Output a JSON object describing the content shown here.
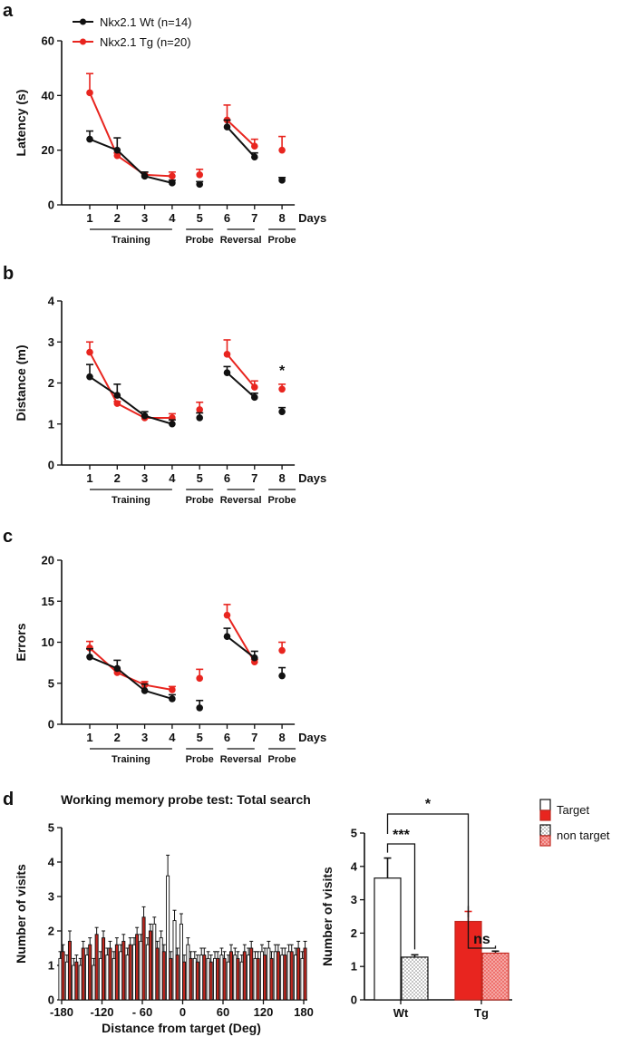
{
  "panels": {
    "a": "a",
    "b": "b",
    "c": "c",
    "d": "d"
  },
  "colors": {
    "wt": "#111111",
    "tg": "#e8251f",
    "axis": "#111111"
  },
  "legend": {
    "wt": "Nkx2.1 Wt (n=14)",
    "tg": "Nkx2.1 Tg (n=20)"
  },
  "groups": [
    "Training",
    "Probe",
    "Reversal",
    "Probe"
  ],
  "days_label": "Days",
  "chart_data": [
    {
      "type": "line",
      "id": "latency",
      "ylabel": "Latency (s)",
      "xlabel": "Days",
      "ylim": [
        0,
        60
      ],
      "yticks": [
        0,
        20,
        40,
        60
      ],
      "categories": [
        1,
        2,
        3,
        4,
        5,
        6,
        7,
        8
      ],
      "series": [
        {
          "name": "Nkx2.1 Wt (n=14)",
          "values": [
            24,
            20,
            10.5,
            8,
            7.5,
            28.5,
            17.5,
            9
          ],
          "errors": [
            3,
            4.5,
            1.5,
            1,
            1,
            2.5,
            1.5,
            1
          ]
        },
        {
          "name": "Nkx2.1 Tg (n=20)",
          "values": [
            41,
            18,
            11,
            10.5,
            11,
            31,
            21.5,
            20
          ],
          "errors": [
            7,
            1,
            1,
            1.5,
            2,
            5.5,
            2.5,
            5
          ]
        }
      ],
      "connected_segments": [
        [
          1,
          4
        ],
        [
          6,
          7
        ]
      ],
      "annotations": []
    },
    {
      "type": "line",
      "id": "distance",
      "ylabel": "Distance (m)",
      "xlabel": "Days",
      "ylim": [
        0,
        4
      ],
      "yticks": [
        0,
        1,
        2,
        3,
        4
      ],
      "categories": [
        1,
        2,
        3,
        4,
        5,
        6,
        7,
        8
      ],
      "series": [
        {
          "name": "Nkx2.1 Wt (n=14)",
          "values": [
            2.15,
            1.7,
            1.2,
            1.0,
            1.15,
            2.25,
            1.65,
            1.3
          ],
          "errors": [
            0.3,
            0.27,
            0.1,
            0.1,
            0.12,
            0.15,
            0.1,
            0.1
          ]
        },
        {
          "name": "Nkx2.1 Tg (n=20)",
          "values": [
            2.75,
            1.5,
            1.15,
            1.15,
            1.35,
            2.7,
            1.9,
            1.85
          ],
          "errors": [
            0.25,
            0.05,
            0.05,
            0.1,
            0.18,
            0.35,
            0.15,
            0.12
          ]
        }
      ],
      "connected_segments": [
        [
          1,
          4
        ],
        [
          6,
          7
        ]
      ],
      "annotations": [
        {
          "x": 8,
          "text": "*"
        }
      ]
    },
    {
      "type": "line",
      "id": "errors",
      "ylabel": "Errors",
      "xlabel": "Days",
      "ylim": [
        0,
        20
      ],
      "yticks": [
        0,
        5,
        10,
        15,
        20
      ],
      "categories": [
        1,
        2,
        3,
        4,
        5,
        6,
        7,
        8
      ],
      "series": [
        {
          "name": "Nkx2.1 Wt (n=14)",
          "values": [
            8.2,
            6.8,
            4.1,
            3.1,
            2.0,
            10.7,
            8.1,
            5.9
          ],
          "errors": [
            1.0,
            1.0,
            0.8,
            0.5,
            0.9,
            1.0,
            0.8,
            1.0
          ]
        },
        {
          "name": "Nkx2.1 Tg (n=20)",
          "values": [
            9.3,
            6.3,
            4.8,
            4.2,
            5.6,
            13.3,
            7.6,
            9.0
          ],
          "errors": [
            0.8,
            0.3,
            0.4,
            0.4,
            1.1,
            1.3,
            0.3,
            1.0
          ]
        }
      ],
      "connected_segments": [
        [
          1,
          4
        ],
        [
          6,
          7
        ]
      ],
      "annotations": []
    },
    {
      "type": "bar",
      "id": "working-memory-histogram",
      "title": "Working memory probe test: Total search",
      "xlabel": "Distance from target (Deg)",
      "ylabel": "Number of visits",
      "ylim": [
        0,
        5
      ],
      "yticks": [
        0,
        1,
        2,
        3,
        4,
        5
      ],
      "xlim": [
        -180,
        180
      ],
      "xticks": [
        -180,
        -120,
        -60,
        0,
        60,
        120,
        180
      ],
      "xtick_labels": [
        "-180",
        "-120",
        "- 60",
        "0",
        "60",
        "120",
        "180"
      ],
      "categories": [
        -180,
        -170,
        -160,
        -150,
        -140,
        -130,
        -120,
        -110,
        -100,
        -90,
        -80,
        -70,
        -60,
        -50,
        -40,
        -30,
        -20,
        -10,
        0,
        10,
        20,
        30,
        40,
        50,
        60,
        70,
        80,
        90,
        100,
        110,
        120,
        130,
        140,
        150,
        160,
        170,
        180
      ],
      "series": [
        {
          "name": "Wt",
          "values": [
            1.2,
            1.1,
            1.0,
            1.0,
            1.3,
            1.0,
            1.2,
            1.3,
            1.2,
            1.4,
            1.3,
            1.6,
            1.7,
            1.6,
            2.2,
            1.8,
            3.6,
            2.3,
            2.2,
            1.6,
            1.2,
            1.3,
            1.2,
            1.2,
            1.3,
            1.1,
            1.3,
            1.1,
            1.3,
            1.2,
            1.4,
            1.5,
            1.4,
            1.3,
            1.4,
            1.3,
            1.2
          ],
          "errors": [
            0.2,
            0.2,
            0.2,
            0.2,
            0.2,
            0.2,
            0.2,
            0.2,
            0.2,
            0.2,
            0.2,
            0.2,
            0.2,
            0.2,
            0.2,
            0.2,
            0.6,
            0.3,
            0.3,
            0.2,
            0.2,
            0.2,
            0.2,
            0.2,
            0.2,
            0.2,
            0.2,
            0.2,
            0.2,
            0.2,
            0.2,
            0.2,
            0.2,
            0.2,
            0.2,
            0.2,
            0.2
          ]
        },
        {
          "name": "Tg",
          "values": [
            1.4,
            1.7,
            1.1,
            1.5,
            1.6,
            1.9,
            1.8,
            1.5,
            1.6,
            1.7,
            1.6,
            1.9,
            2.4,
            2.0,
            1.5,
            1.4,
            1.2,
            1.3,
            1.1,
            1.2,
            1.1,
            1.3,
            1.1,
            1.2,
            1.2,
            1.4,
            1.2,
            1.4,
            1.5,
            1.2,
            1.3,
            1.2,
            1.4,
            1.3,
            1.4,
            1.5,
            1.5
          ],
          "errors": [
            0.2,
            0.3,
            0.2,
            0.2,
            0.2,
            0.2,
            0.2,
            0.2,
            0.2,
            0.2,
            0.2,
            0.2,
            0.3,
            0.2,
            0.2,
            0.2,
            0.2,
            0.2,
            0.2,
            0.2,
            0.2,
            0.2,
            0.2,
            0.2,
            0.2,
            0.2,
            0.2,
            0.2,
            0.2,
            0.2,
            0.2,
            0.2,
            0.2,
            0.2,
            0.2,
            0.2,
            0.2
          ]
        }
      ]
    },
    {
      "type": "bar",
      "id": "visits-summary",
      "ylabel": "Number of visits",
      "ylim": [
        0,
        5
      ],
      "yticks": [
        0,
        1,
        2,
        3,
        4,
        5
      ],
      "categories": [
        "Wt",
        "Tg"
      ],
      "series": [
        {
          "name": "Target",
          "values": [
            3.65,
            2.35
          ],
          "errors": [
            0.6,
            0.3
          ]
        },
        {
          "name": "non target",
          "values": [
            1.28,
            1.4
          ],
          "errors": [
            0.07,
            0.06
          ]
        }
      ],
      "significance": [
        {
          "between": "Wt Target vs Wt non target",
          "label": "***"
        },
        {
          "between": "Tg Target vs Tg non target",
          "label": "ns"
        },
        {
          "between": "Wt Target vs Tg Target",
          "label": "*"
        }
      ],
      "legend": [
        "Target",
        "non target"
      ],
      "legend_position": "right"
    }
  ]
}
